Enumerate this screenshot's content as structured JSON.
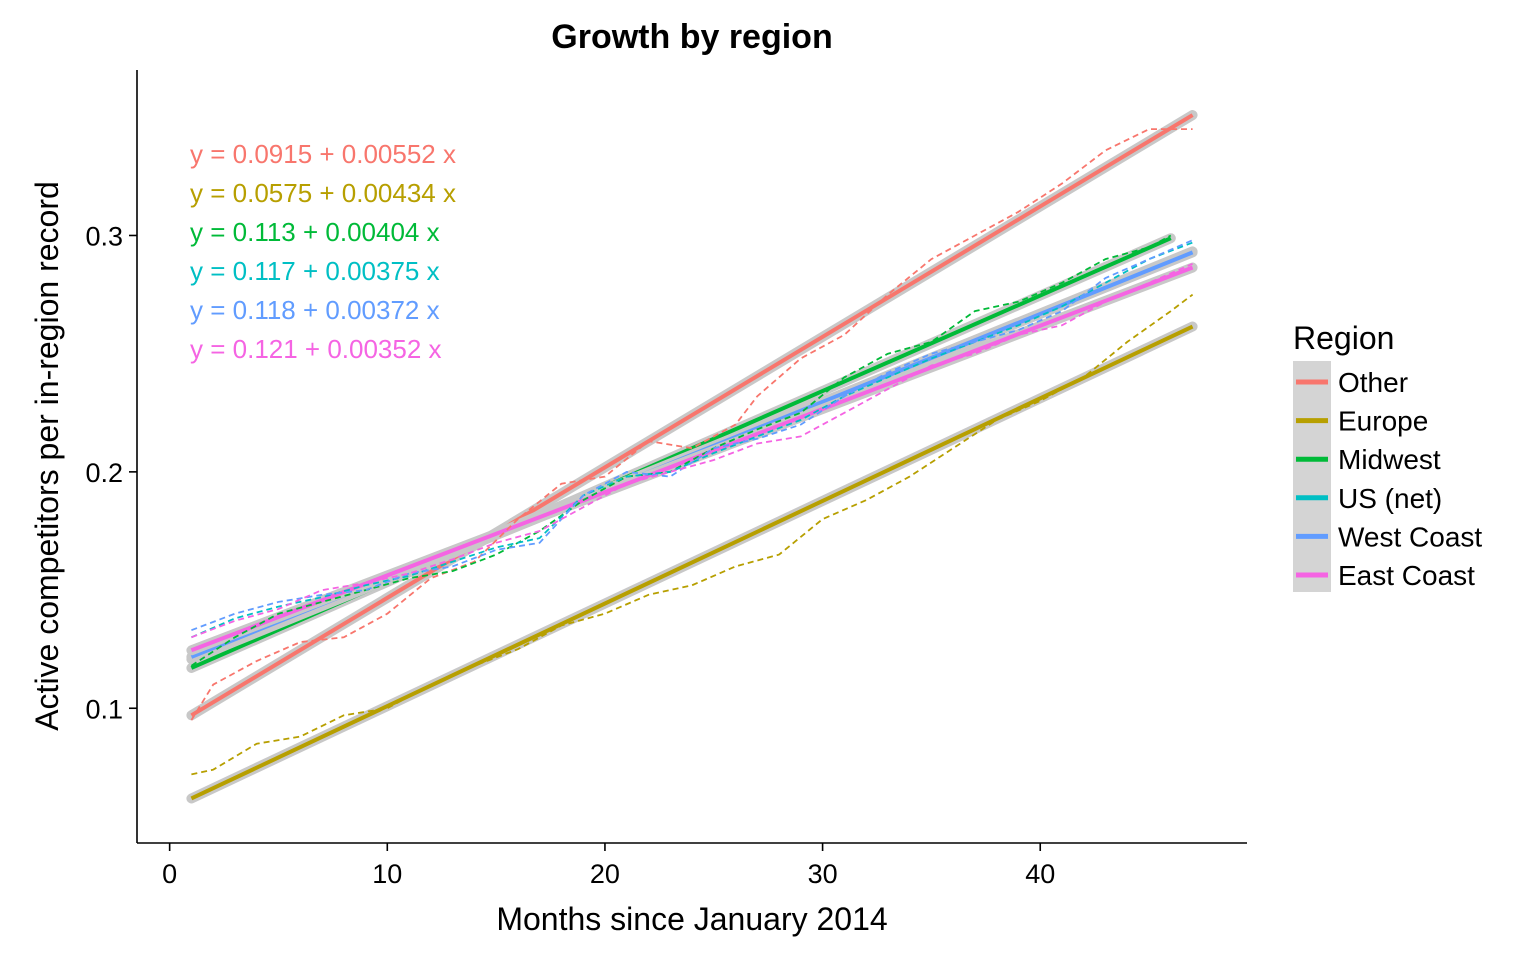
{
  "chart_data": {
    "type": "line",
    "title": "Growth by region",
    "xlabel": "Months since January 2014",
    "ylabel": "Active competitors per in-region record",
    "xlim": [
      -1.5,
      49.5
    ],
    "ylim": [
      0.043,
      0.37
    ],
    "x_ticks": [
      0,
      10,
      20,
      30,
      40
    ],
    "x_tick_labels": [
      "0",
      "10",
      "20",
      "30",
      "40"
    ],
    "y_ticks": [
      0.1,
      0.2,
      0.3
    ],
    "y_tick_labels": [
      "0.1",
      "0.2",
      "0.3"
    ],
    "grid": false,
    "legend": {
      "title": "Region",
      "position": "right"
    },
    "series": [
      {
        "name": "Other",
        "color": "#F8766D",
        "fit_intercept": 0.0915,
        "fit_slope": 0.00552,
        "equation": "y = 0.0915 + 0.00552 x",
        "x": [
          1,
          2,
          4,
          6,
          8,
          10,
          12,
          14,
          16,
          18,
          20,
          22,
          24,
          26,
          27,
          29,
          31,
          33,
          35,
          37,
          39,
          41,
          43,
          45,
          47
        ],
        "y": [
          0.095,
          0.11,
          0.12,
          0.128,
          0.13,
          0.14,
          0.155,
          0.162,
          0.18,
          0.195,
          0.198,
          0.213,
          0.21,
          0.22,
          0.232,
          0.248,
          0.258,
          0.275,
          0.29,
          0.3,
          0.31,
          0.322,
          0.336,
          0.345,
          0.345
        ]
      },
      {
        "name": "Europe",
        "color": "#B79F00",
        "fit_intercept": 0.0575,
        "fit_slope": 0.00434,
        "equation": "y = 0.0575 + 0.00434 x",
        "x": [
          1,
          2,
          4,
          6,
          8,
          10,
          12,
          14,
          16,
          18,
          20,
          22,
          24,
          26,
          28,
          30,
          32,
          34,
          36,
          38,
          40,
          42,
          44,
          46,
          47
        ],
        "y": [
          0.072,
          0.074,
          0.085,
          0.088,
          0.097,
          0.1,
          0.11,
          0.118,
          0.125,
          0.135,
          0.14,
          0.148,
          0.152,
          0.16,
          0.165,
          0.18,
          0.188,
          0.198,
          0.21,
          0.222,
          0.23,
          0.24,
          0.255,
          0.268,
          0.275
        ]
      },
      {
        "name": "Midwest",
        "color": "#00BA38",
        "fit_intercept": 0.113,
        "fit_slope": 0.00404,
        "equation": "y = 0.113 + 0.00404 x",
        "x": [
          1,
          3,
          5,
          7,
          9,
          11,
          13,
          15,
          17,
          19,
          21,
          23,
          25,
          27,
          29,
          31,
          33,
          35,
          37,
          39,
          41,
          43,
          45,
          46
        ],
        "y": [
          0.118,
          0.13,
          0.14,
          0.145,
          0.15,
          0.155,
          0.158,
          0.165,
          0.175,
          0.188,
          0.198,
          0.2,
          0.21,
          0.218,
          0.225,
          0.24,
          0.25,
          0.255,
          0.268,
          0.272,
          0.28,
          0.29,
          0.295,
          0.3
        ]
      },
      {
        "name": "US (net)",
        "color": "#00BFC4",
        "fit_intercept": 0.117,
        "fit_slope": 0.00375,
        "equation": "y = 0.117 + 0.00375 x",
        "x": [
          1,
          3,
          5,
          7,
          9,
          11,
          13,
          15,
          17,
          19,
          21,
          23,
          25,
          27,
          29,
          31,
          33,
          35,
          37,
          39,
          41,
          43,
          45,
          47
        ],
        "y": [
          0.13,
          0.138,
          0.143,
          0.147,
          0.152,
          0.156,
          0.162,
          0.168,
          0.172,
          0.19,
          0.198,
          0.2,
          0.208,
          0.215,
          0.222,
          0.232,
          0.24,
          0.248,
          0.255,
          0.262,
          0.27,
          0.28,
          0.29,
          0.297
        ]
      },
      {
        "name": "West Coast",
        "color": "#619CFF",
        "fit_intercept": 0.118,
        "fit_slope": 0.00372,
        "equation": "y = 0.118 + 0.00372 x",
        "x": [
          1,
          3,
          5,
          7,
          9,
          11,
          13,
          15,
          17,
          19,
          21,
          23,
          25,
          27,
          29,
          31,
          33,
          35,
          37,
          39,
          41,
          43,
          45,
          47
        ],
        "y": [
          0.133,
          0.14,
          0.145,
          0.148,
          0.15,
          0.157,
          0.16,
          0.167,
          0.17,
          0.19,
          0.2,
          0.198,
          0.21,
          0.214,
          0.22,
          0.232,
          0.242,
          0.25,
          0.255,
          0.26,
          0.268,
          0.282,
          0.29,
          0.298
        ]
      },
      {
        "name": "East Coast",
        "color": "#F564E3",
        "fit_intercept": 0.121,
        "fit_slope": 0.00352,
        "equation": "y = 0.121 + 0.00352 x",
        "x": [
          1,
          3,
          5,
          7,
          9,
          11,
          13,
          15,
          17,
          19,
          21,
          23,
          25,
          27,
          29,
          31,
          33,
          35,
          37,
          39,
          41,
          43,
          45,
          47
        ],
        "y": [
          0.13,
          0.137,
          0.142,
          0.15,
          0.153,
          0.157,
          0.163,
          0.17,
          0.175,
          0.185,
          0.195,
          0.2,
          0.205,
          0.212,
          0.215,
          0.225,
          0.235,
          0.245,
          0.25,
          0.258,
          0.262,
          0.272,
          0.28,
          0.288
        ]
      }
    ]
  }
}
